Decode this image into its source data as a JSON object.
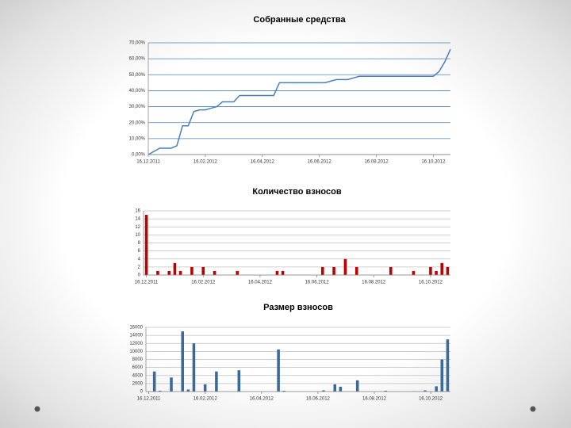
{
  "chart_data": [
    {
      "type": "line",
      "title": "Собранные средства",
      "color": "#4a7ebb",
      "grid": true,
      "grid_color": "#4f81bd",
      "categories": [
        "16.12.2011",
        null,
        null,
        null,
        null,
        null,
        null,
        null,
        null,
        null,
        "16.02.2012",
        null,
        null,
        null,
        null,
        null,
        null,
        null,
        null,
        null,
        "16.04.2012",
        null,
        null,
        null,
        null,
        null,
        null,
        null,
        null,
        null,
        "16.06.2012",
        null,
        null,
        null,
        null,
        null,
        null,
        null,
        null,
        null,
        "16.08.2012",
        null,
        null,
        null,
        null,
        null,
        null,
        null,
        null,
        null,
        "16.10.2012",
        null,
        null,
        null
      ],
      "values": [
        0,
        2,
        4,
        4,
        4,
        5.5,
        18,
        18,
        27,
        28,
        28,
        29,
        30,
        33,
        33,
        33,
        37,
        37,
        37,
        37,
        37,
        37,
        37,
        45,
        45,
        45,
        45,
        45,
        45,
        45,
        45,
        45,
        46,
        47,
        47,
        47,
        48,
        49,
        49,
        49,
        49,
        49,
        49,
        49,
        49,
        49,
        49,
        49,
        49,
        49,
        49,
        52,
        58,
        66
      ],
      "ylim": [
        0,
        70
      ],
      "yticks": [
        {
          "value": 0,
          "label": "0,00%"
        },
        {
          "value": 10,
          "label": "10,00%"
        },
        {
          "value": 20,
          "label": "20,00%"
        },
        {
          "value": 30,
          "label": "30,00%"
        },
        {
          "value": 40,
          "label": "40,00%"
        },
        {
          "value": 50,
          "label": "50,00%"
        },
        {
          "value": 60,
          "label": "60,00%"
        },
        {
          "value": 70,
          "label": "70,00%"
        }
      ]
    },
    {
      "type": "bar",
      "title": "Количество взносов",
      "color": "#c00000",
      "grid": true,
      "grid_color": "#bfbfbf",
      "categories": [
        "16.12.2011",
        null,
        null,
        null,
        null,
        null,
        null,
        null,
        null,
        null,
        "16.02.2012",
        null,
        null,
        null,
        null,
        null,
        null,
        null,
        null,
        null,
        "16.04.2012",
        null,
        null,
        null,
        null,
        null,
        null,
        null,
        null,
        null,
        "16.06.2012",
        null,
        null,
        null,
        null,
        null,
        null,
        null,
        null,
        null,
        "16.08.2012",
        null,
        null,
        null,
        null,
        null,
        null,
        null,
        null,
        null,
        "16.10.2012",
        null,
        null,
        null
      ],
      "values": [
        15,
        0,
        1,
        0,
        1,
        3,
        1,
        0,
        2,
        0,
        2,
        0,
        1,
        0,
        0,
        0,
        1,
        0,
        0,
        0,
        0,
        0,
        0,
        1,
        1,
        0,
        0,
        0,
        0,
        0,
        0,
        2,
        0,
        2,
        0,
        4,
        0,
        2,
        0,
        0,
        0,
        0,
        0,
        2,
        0,
        0,
        0,
        1,
        0,
        0,
        2,
        1,
        3,
        2
      ],
      "ylim": [
        0,
        16
      ],
      "yticks": [
        0,
        2,
        4,
        6,
        8,
        10,
        12,
        14,
        16
      ]
    },
    {
      "type": "bar",
      "title": "Размер взносов",
      "color": "#3b6a9a",
      "grid": true,
      "grid_color": "#bfbfbf",
      "categories": [
        "16.12.2011",
        null,
        null,
        null,
        null,
        null,
        null,
        null,
        null,
        null,
        "16.02.2012",
        null,
        null,
        null,
        null,
        null,
        null,
        null,
        null,
        null,
        "16.04.2012",
        null,
        null,
        null,
        null,
        null,
        null,
        null,
        null,
        null,
        "16.06.2012",
        null,
        null,
        null,
        null,
        null,
        null,
        null,
        null,
        null,
        "16.08.2012",
        null,
        null,
        null,
        null,
        null,
        null,
        null,
        null,
        null,
        "16.10.2012",
        null,
        null,
        null
      ],
      "values": [
        0,
        5000,
        200,
        0,
        3500,
        0,
        15000,
        500,
        12000,
        0,
        1800,
        0,
        5000,
        0,
        0,
        0,
        5300,
        0,
        0,
        0,
        0,
        0,
        0,
        10500,
        200,
        0,
        0,
        0,
        0,
        0,
        0,
        300,
        0,
        1800,
        1200,
        0,
        0,
        2800,
        0,
        0,
        0,
        0,
        200,
        0,
        0,
        0,
        0,
        100,
        0,
        300,
        0,
        1300,
        8000,
        13000
      ],
      "ylim": [
        0,
        16000
      ],
      "yticks": [
        0,
        2000,
        4000,
        6000,
        8000,
        10000,
        12000,
        14000,
        16000
      ]
    }
  ]
}
